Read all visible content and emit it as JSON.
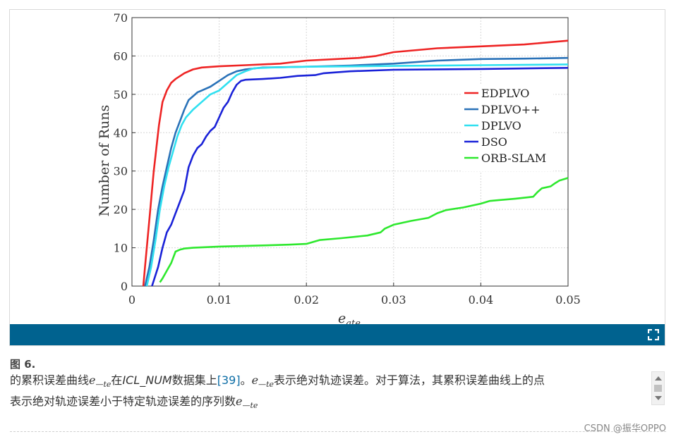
{
  "figure": {
    "label": "图 6.",
    "caption": {
      "p1": "的累积误差曲线",
      "m1": "e",
      "m1_sub": "—te",
      "p2": "在",
      "dataset": "ICL_NUM",
      "p3": "数据集上",
      "ref": "[39]",
      "p4": "。",
      "m2": "e",
      "m2_sub": "—te",
      "p5": "表示绝对轨迹误差。对于算法，其累积误差曲线上的点",
      "line2": "表示绝对轨迹误差小于特定轨迹误差的序列数",
      "m3": "e",
      "m3_sub": "—te"
    }
  },
  "watermark": "CSDN @振华OPPO",
  "colors": {
    "bar": "#00628f",
    "link": "#0d6ea6"
  },
  "icons": {
    "expand": "expand-icon"
  },
  "chart_data": {
    "type": "line",
    "title": "",
    "xlabel": "e",
    "xlabel_sub": "ate",
    "ylabel": "Number of Runs",
    "xlim": [
      0,
      0.05
    ],
    "ylim": [
      0,
      70
    ],
    "xticks": [
      0,
      0.01,
      0.02,
      0.03,
      0.04,
      0.05
    ],
    "xtick_labels": [
      "0",
      "0.01",
      "0.02",
      "0.03",
      "0.04",
      "0.05"
    ],
    "yticks": [
      0,
      10,
      20,
      30,
      40,
      50,
      60,
      70
    ],
    "ytick_labels": [
      "0",
      "10",
      "20",
      "30",
      "40",
      "50",
      "60",
      "70"
    ],
    "grid": true,
    "legend_position": "right-middle",
    "series": [
      {
        "name": "EDPLVO",
        "color": "#ee2424",
        "points": [
          [
            0.0013,
            0
          ],
          [
            0.0015,
            5
          ],
          [
            0.0017,
            10
          ],
          [
            0.0019,
            15
          ],
          [
            0.0021,
            20
          ],
          [
            0.0023,
            25
          ],
          [
            0.0025,
            30
          ],
          [
            0.0027,
            34
          ],
          [
            0.0029,
            38
          ],
          [
            0.0031,
            42
          ],
          [
            0.0033,
            45
          ],
          [
            0.0035,
            48
          ],
          [
            0.004,
            51
          ],
          [
            0.0045,
            53
          ],
          [
            0.005,
            54
          ],
          [
            0.006,
            55.5
          ],
          [
            0.007,
            56.5
          ],
          [
            0.008,
            57
          ],
          [
            0.01,
            57.3
          ],
          [
            0.013,
            57.6
          ],
          [
            0.017,
            58
          ],
          [
            0.02,
            58.8
          ],
          [
            0.026,
            59.5
          ],
          [
            0.028,
            60
          ],
          [
            0.03,
            61
          ],
          [
            0.035,
            62
          ],
          [
            0.04,
            62.5
          ],
          [
            0.045,
            63
          ],
          [
            0.05,
            64
          ]
        ]
      },
      {
        "name": "DPLVO++",
        "color": "#2a72b8",
        "points": [
          [
            0.0015,
            0
          ],
          [
            0.002,
            5
          ],
          [
            0.0025,
            12
          ],
          [
            0.003,
            20
          ],
          [
            0.0035,
            26
          ],
          [
            0.004,
            31
          ],
          [
            0.0045,
            36
          ],
          [
            0.005,
            40
          ],
          [
            0.0055,
            43
          ],
          [
            0.006,
            46
          ],
          [
            0.0065,
            48.5
          ],
          [
            0.007,
            49.5
          ],
          [
            0.0075,
            50.5
          ],
          [
            0.008,
            51
          ],
          [
            0.009,
            52
          ],
          [
            0.01,
            53.5
          ],
          [
            0.011,
            55
          ],
          [
            0.012,
            56
          ],
          [
            0.013,
            56.5
          ],
          [
            0.015,
            57
          ],
          [
            0.02,
            57.2
          ],
          [
            0.025,
            57.5
          ],
          [
            0.03,
            58
          ],
          [
            0.035,
            58.8
          ],
          [
            0.04,
            59.2
          ],
          [
            0.045,
            59.3
          ],
          [
            0.05,
            59.5
          ]
        ]
      },
      {
        "name": "DPLVO",
        "color": "#30e0f0",
        "points": [
          [
            0.0017,
            0
          ],
          [
            0.0022,
            5
          ],
          [
            0.0027,
            12
          ],
          [
            0.0032,
            20
          ],
          [
            0.0037,
            26
          ],
          [
            0.0042,
            31
          ],
          [
            0.0047,
            35
          ],
          [
            0.0052,
            39
          ],
          [
            0.0057,
            42
          ],
          [
            0.0062,
            44
          ],
          [
            0.007,
            46
          ],
          [
            0.008,
            48
          ],
          [
            0.009,
            50
          ],
          [
            0.01,
            51
          ],
          [
            0.011,
            53
          ],
          [
            0.012,
            55
          ],
          [
            0.013,
            56
          ],
          [
            0.014,
            56.8
          ],
          [
            0.016,
            57
          ],
          [
            0.02,
            57.2
          ],
          [
            0.03,
            57.4
          ],
          [
            0.04,
            57.6
          ],
          [
            0.05,
            57.8
          ]
        ]
      },
      {
        "name": "DSO",
        "color": "#1a22d8",
        "points": [
          [
            0.0023,
            0
          ],
          [
            0.003,
            5
          ],
          [
            0.0035,
            10
          ],
          [
            0.004,
            14
          ],
          [
            0.0045,
            16
          ],
          [
            0.005,
            19
          ],
          [
            0.0055,
            22
          ],
          [
            0.006,
            25
          ],
          [
            0.0065,
            31
          ],
          [
            0.007,
            34
          ],
          [
            0.0075,
            36
          ],
          [
            0.008,
            37
          ],
          [
            0.0085,
            39
          ],
          [
            0.009,
            40.5
          ],
          [
            0.0095,
            41.5
          ],
          [
            0.01,
            44
          ],
          [
            0.0105,
            46.5
          ],
          [
            0.011,
            48
          ],
          [
            0.0115,
            50.5
          ],
          [
            0.012,
            52.5
          ],
          [
            0.0125,
            53.5
          ],
          [
            0.013,
            53.8
          ],
          [
            0.015,
            54
          ],
          [
            0.017,
            54.3
          ],
          [
            0.019,
            54.8
          ],
          [
            0.021,
            55
          ],
          [
            0.022,
            55.5
          ],
          [
            0.025,
            56
          ],
          [
            0.03,
            56.4
          ],
          [
            0.04,
            56.6
          ],
          [
            0.05,
            56.9
          ]
        ]
      },
      {
        "name": "ORB-SLAM",
        "color": "#2ee82e",
        "points": [
          [
            0.0032,
            1
          ],
          [
            0.0035,
            2
          ],
          [
            0.004,
            4
          ],
          [
            0.0045,
            6
          ],
          [
            0.005,
            9
          ],
          [
            0.0055,
            9.5
          ],
          [
            0.006,
            9.8
          ],
          [
            0.007,
            10
          ],
          [
            0.01,
            10.3
          ],
          [
            0.015,
            10.6
          ],
          [
            0.018,
            10.8
          ],
          [
            0.02,
            11
          ],
          [
            0.0215,
            12
          ],
          [
            0.024,
            12.5
          ],
          [
            0.027,
            13.2
          ],
          [
            0.0285,
            14
          ],
          [
            0.029,
            15
          ],
          [
            0.03,
            16
          ],
          [
            0.032,
            17
          ],
          [
            0.034,
            17.8
          ],
          [
            0.035,
            19
          ],
          [
            0.036,
            19.8
          ],
          [
            0.038,
            20.5
          ],
          [
            0.04,
            21.5
          ],
          [
            0.041,
            22.2
          ],
          [
            0.042,
            22.4
          ],
          [
            0.044,
            22.8
          ],
          [
            0.046,
            23.3
          ],
          [
            0.0465,
            24.5
          ],
          [
            0.047,
            25.5
          ],
          [
            0.048,
            26
          ],
          [
            0.0485,
            26.8
          ],
          [
            0.049,
            27.5
          ],
          [
            0.05,
            28.2
          ]
        ]
      }
    ]
  }
}
